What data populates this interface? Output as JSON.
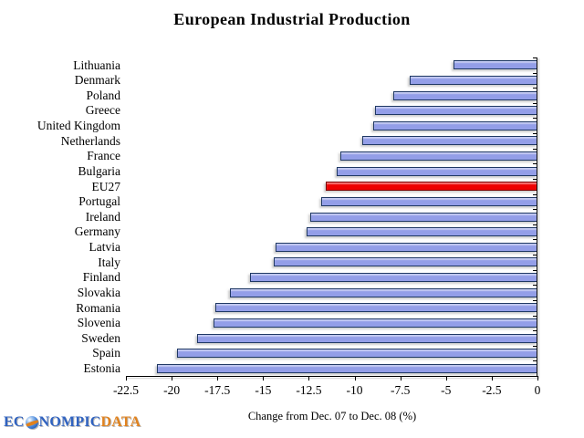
{
  "title": "European Industrial Production",
  "xlabel": "Change from Dec. 07 to Dec. 08 (%)",
  "logo": {
    "text_left": "EC",
    "globe_icon": "globe-icon",
    "text_mid": "NOMPIC",
    "text_right": "DATA"
  },
  "colors": {
    "bar_fill": "#939ee8",
    "bar_border": "#1f3864",
    "highlight_fill": "#ee0000",
    "highlight_border": "#7a0000",
    "axis": "#000000",
    "logo_blue": "#2f62c0",
    "logo_orange": "#e0821e"
  },
  "chart_data": {
    "type": "bar",
    "orientation": "horizontal",
    "title": "European Industrial Production",
    "xlabel": "Change from Dec. 07 to Dec. 08 (%)",
    "ylabel": "",
    "xlim": [
      -22.5,
      0
    ],
    "grid": false,
    "legend": false,
    "categories": [
      "Lithuania",
      "Denmark",
      "Poland",
      "Greece",
      "United Kingdom",
      "Netherlands",
      "France",
      "Bulgaria",
      "EU27",
      "Portugal",
      "Ireland",
      "Germany",
      "Latvia",
      "Italy",
      "Finland",
      "Slovakia",
      "Romania",
      "Slovenia",
      "Sweden",
      "Spain",
      "Estonia"
    ],
    "values": [
      -4.5,
      -6.9,
      -7.8,
      -8.8,
      -8.9,
      -9.5,
      -10.7,
      -10.9,
      -11.5,
      -11.7,
      -12.3,
      -12.5,
      -14.2,
      -14.3,
      -15.6,
      -16.7,
      -17.5,
      -17.6,
      -18.5,
      -19.6,
      -20.7
    ],
    "highlight_category": "EU27",
    "xticks": [
      -22.5,
      -20,
      -17.5,
      -15,
      -12.5,
      -10,
      -7.5,
      -5,
      -2.5,
      0
    ],
    "xtick_labels": [
      "-22.5",
      "-20",
      "-17.5",
      "-15",
      "-12.5",
      "-10",
      "-7.5",
      "-5",
      "-2.5",
      "0"
    ]
  }
}
